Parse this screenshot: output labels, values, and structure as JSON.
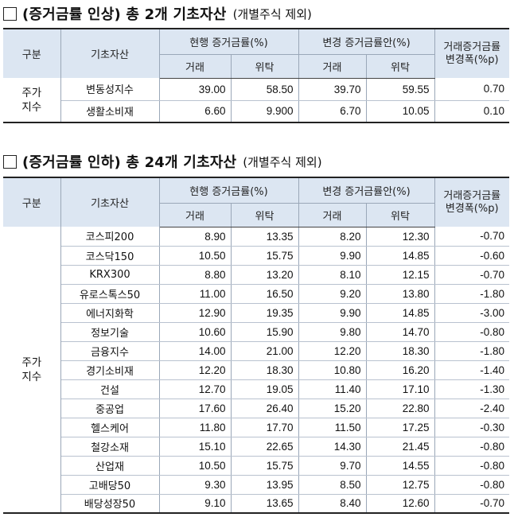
{
  "section1": {
    "title": "(증거금률 인상) 총 2개 기초자산",
    "subtitle": "(개별주식 제외)"
  },
  "section2": {
    "title": "(증거금률 인하) 총 24개 기초자산",
    "subtitle": "(개별주식 제외)"
  },
  "headers": {
    "category": "구분",
    "asset": "기초자산",
    "current": "현행 증거금률(%)",
    "proposed": "변경 증거금률안(%)",
    "change_line1": "거래증거금률",
    "change_line2": "변경폭(%p)",
    "trade": "거래",
    "trust": "위탁"
  },
  "table1": {
    "group": [
      "주가",
      "지수"
    ],
    "rows": [
      {
        "name": "변동성지수",
        "cur_trade": "39.00",
        "cur_trust": "58.50",
        "new_trade": "39.70",
        "new_trust": "59.55",
        "change": "0.70"
      },
      {
        "name": "생활소비재",
        "cur_trade": "6.60",
        "cur_trust": "9.900",
        "new_trade": "6.70",
        "new_trust": "10.05",
        "change": "0.10"
      }
    ]
  },
  "table2": {
    "group": [
      "주가",
      "지수"
    ],
    "rows": [
      {
        "name": "코스피200",
        "cur_trade": "8.90",
        "cur_trust": "13.35",
        "new_trade": "8.20",
        "new_trust": "12.30",
        "change": "-0.70"
      },
      {
        "name": "코스닥150",
        "cur_trade": "10.50",
        "cur_trust": "15.75",
        "new_trade": "9.90",
        "new_trust": "14.85",
        "change": "-0.60"
      },
      {
        "name": "KRX300",
        "cur_trade": "8.80",
        "cur_trust": "13.20",
        "new_trade": "8.10",
        "new_trust": "12.15",
        "change": "-0.70"
      },
      {
        "name": "유로스톡스50",
        "cur_trade": "11.00",
        "cur_trust": "16.50",
        "new_trade": "9.20",
        "new_trust": "13.80",
        "change": "-1.80"
      },
      {
        "name": "에너지화학",
        "cur_trade": "12.90",
        "cur_trust": "19.35",
        "new_trade": "9.90",
        "new_trust": "14.85",
        "change": "-3.00"
      },
      {
        "name": "정보기술",
        "cur_trade": "10.60",
        "cur_trust": "15.90",
        "new_trade": "9.80",
        "new_trust": "14.70",
        "change": "-0.80"
      },
      {
        "name": "금융지수",
        "cur_trade": "14.00",
        "cur_trust": "21.00",
        "new_trade": "12.20",
        "new_trust": "18.30",
        "change": "-1.80"
      },
      {
        "name": "경기소비재",
        "cur_trade": "12.20",
        "cur_trust": "18.30",
        "new_trade": "10.80",
        "new_trust": "16.20",
        "change": "-1.40"
      },
      {
        "name": "건설",
        "cur_trade": "12.70",
        "cur_trust": "19.05",
        "new_trade": "11.40",
        "new_trust": "17.10",
        "change": "-1.30"
      },
      {
        "name": "중공업",
        "cur_trade": "17.60",
        "cur_trust": "26.40",
        "new_trade": "15.20",
        "new_trust": "22.80",
        "change": "-2.40"
      },
      {
        "name": "헬스케어",
        "cur_trade": "11.80",
        "cur_trust": "17.70",
        "new_trade": "11.50",
        "new_trust": "17.25",
        "change": "-0.30"
      },
      {
        "name": "철강소재",
        "cur_trade": "15.10",
        "cur_trust": "22.65",
        "new_trade": "14.30",
        "new_trust": "21.45",
        "change": "-0.80"
      },
      {
        "name": "산업재",
        "cur_trade": "10.50",
        "cur_trust": "15.75",
        "new_trade": "9.70",
        "new_trust": "14.55",
        "change": "-0.80"
      },
      {
        "name": "고배당50",
        "cur_trade": "9.30",
        "cur_trust": "13.95",
        "new_trade": "8.50",
        "new_trust": "12.75",
        "change": "-0.80"
      },
      {
        "name": "배당성장50",
        "cur_trade": "9.10",
        "cur_trust": "13.65",
        "new_trade": "8.40",
        "new_trust": "12.60",
        "change": "-0.70"
      }
    ]
  }
}
